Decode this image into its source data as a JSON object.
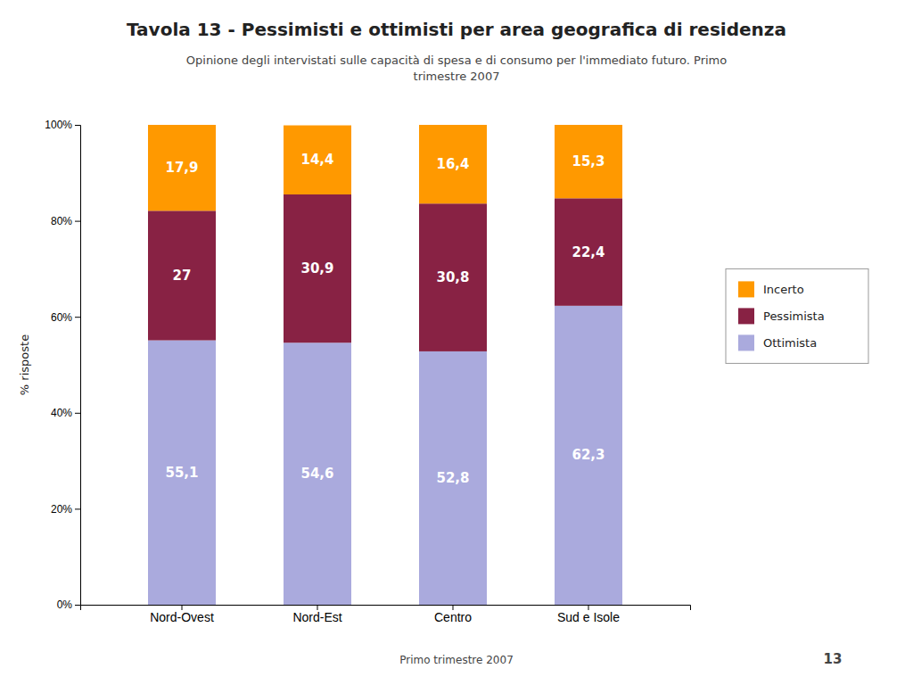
{
  "chart_data": {
    "type": "bar",
    "stacked": true,
    "title": "Tavola 13 - Pessimisti e ottimisti per area geografica di residenza",
    "subtitle": "Opinione degli intervistati sulle capacità di spesa e di consumo per l'immediato futuro. Primo\ntrimestre 2007",
    "annotations": [
      "Primo trimestre 2007",
      "13"
    ],
    "ylabel": "% risposte",
    "categories": [
      "Nord-Ovest",
      "Nord-Est",
      "Centro",
      "Sud e Isole"
    ],
    "series": [
      {
        "name": "Ottimista",
        "color": "#aaaadd",
        "values": [
          55.1,
          54.6,
          52.8,
          62.3
        ],
        "value_labels": [
          "55,1",
          "54,6",
          "52,8",
          "62,3"
        ]
      },
      {
        "name": "Pessimista",
        "color": "#882244",
        "values": [
          27.0,
          30.9,
          30.8,
          22.4
        ],
        "value_labels": [
          "27",
          "30,9",
          "30,8",
          "22,4"
        ]
      },
      {
        "name": "Incerto",
        "color": "#ff9900",
        "values": [
          17.9,
          14.4,
          16.4,
          15.3
        ],
        "value_labels": [
          "17,9",
          "14,4",
          "16,4",
          "15,3"
        ]
      }
    ],
    "ylim": [
      0,
      100
    ],
    "yticks": [
      {
        "value": 0,
        "label": "0%"
      },
      {
        "value": 20,
        "label": "20%"
      },
      {
        "value": 40,
        "label": "40%"
      },
      {
        "value": 60,
        "label": "60%"
      },
      {
        "value": 80,
        "label": "80%"
      },
      {
        "value": 100,
        "label": "100%"
      }
    ],
    "grid": false,
    "legend": "right",
    "data_labels": true
  }
}
